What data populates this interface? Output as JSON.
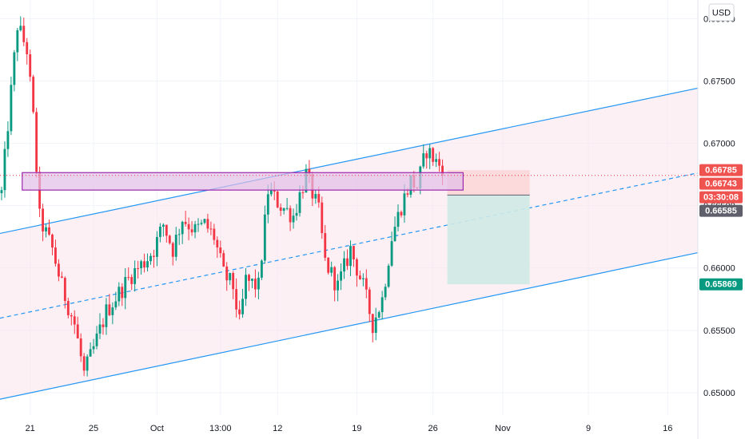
{
  "chart_data": {
    "type": "candlestick",
    "currency": "USD",
    "ylim": [
      0.6482,
      0.6815
    ],
    "y_ticks": [
      "0.68000",
      "0.67500",
      "0.67000",
      "0.66500",
      "0.66000",
      "0.65500",
      "0.65000"
    ],
    "y_tick_values": [
      0.68,
      0.675,
      0.67,
      0.665,
      0.66,
      0.655,
      0.65
    ],
    "x_ticks": [
      "21",
      "25",
      "Oct",
      "13:00",
      "12",
      "19",
      "26",
      "Nov",
      "9",
      "16"
    ],
    "x_tick_bars": [
      9,
      29,
      49,
      69,
      87,
      112,
      136,
      158,
      185,
      210
    ],
    "bar_count": 220,
    "waypoints": [
      [
        0,
        0.666
      ],
      [
        2,
        0.6715
      ],
      [
        5,
        0.6795
      ],
      [
        8,
        0.6775
      ],
      [
        10,
        0.672
      ],
      [
        12,
        0.664
      ],
      [
        16,
        0.6615
      ],
      [
        19,
        0.6585
      ],
      [
        23,
        0.6555
      ],
      [
        26,
        0.6515
      ],
      [
        29,
        0.6535
      ],
      [
        33,
        0.6565
      ],
      [
        37,
        0.658
      ],
      [
        41,
        0.6595
      ],
      [
        45,
        0.6605
      ],
      [
        48,
        0.6615
      ],
      [
        51,
        0.6635
      ],
      [
        54,
        0.6615
      ],
      [
        57,
        0.664
      ],
      [
        61,
        0.663
      ],
      [
        64,
        0.6635
      ],
      [
        67,
        0.6625
      ],
      [
        70,
        0.6595
      ],
      [
        73,
        0.6585
      ],
      [
        75,
        0.6555
      ],
      [
        77,
        0.659
      ],
      [
        81,
        0.6585
      ],
      [
        84,
        0.6662
      ],
      [
        88,
        0.665
      ],
      [
        92,
        0.6642
      ],
      [
        96,
        0.6675
      ],
      [
        100,
        0.6645
      ],
      [
        102,
        0.6605
      ],
      [
        106,
        0.6585
      ],
      [
        110,
        0.6615
      ],
      [
        114,
        0.6585
      ],
      [
        117,
        0.6555
      ],
      [
        120,
        0.6575
      ],
      [
        123,
        0.6625
      ],
      [
        126,
        0.665
      ],
      [
        129,
        0.667
      ],
      [
        131,
        0.6665
      ],
      [
        134,
        0.6695
      ],
      [
        137,
        0.6685
      ],
      [
        139,
        0.668
      ]
    ],
    "price_tags": [
      {
        "label": "0.66785",
        "value": 0.66785,
        "color": "#ef5350"
      },
      {
        "label": "0.66743",
        "value": 0.66743,
        "color": "#ef5350"
      },
      {
        "label": "03:30:08",
        "value": 0.6665,
        "color": "#ef5350"
      },
      {
        "label": "0.66585",
        "value": 0.66585,
        "color": "#5d606b"
      },
      {
        "label": "0.65869",
        "value": 0.65869,
        "color": "#089981"
      }
    ],
    "current_price": 0.66743,
    "channel": {
      "upper": [
        [
          0,
          0.6628
        ],
        [
          219,
          0.6744
        ]
      ],
      "middle": [
        [
          0,
          0.656
        ],
        [
          219,
          0.6676
        ]
      ],
      "lower": [
        [
          0,
          0.6495
        ],
        [
          219,
          0.6612
        ]
      ]
    },
    "resistance_zone": {
      "bar_start": 7,
      "bar_end": 145,
      "top": 0.66765,
      "bottom": 0.66625
    },
    "trade_box": {
      "bar_start": 141,
      "bar_end": 166,
      "entry": 0.66585,
      "stop": 0.66785,
      "target": 0.65869
    }
  },
  "colors": {
    "up": "#089981",
    "down": "#f23645",
    "channel_line": "#2196f3",
    "channel_fill": "#fce4ec",
    "zone_fill": "#e1bee7",
    "zone_border": "#9c27b0",
    "stop_fill": "#fbd3d5",
    "target_fill": "#cfe9e6",
    "grid": "#f0f3fa"
  }
}
